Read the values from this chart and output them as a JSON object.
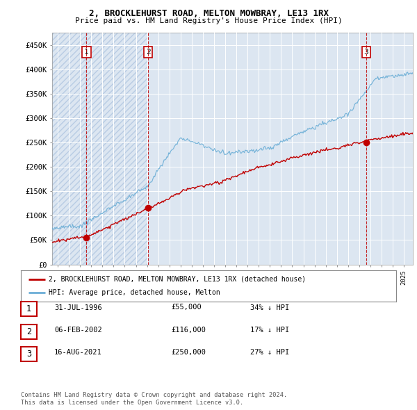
{
  "title1": "2, BROCKLEHURST ROAD, MELTON MOWBRAY, LE13 1RX",
  "title2": "Price paid vs. HM Land Registry's House Price Index (HPI)",
  "ylim": [
    0,
    475000
  ],
  "yticks": [
    0,
    50000,
    100000,
    150000,
    200000,
    250000,
    300000,
    350000,
    400000,
    450000
  ],
  "ytick_labels": [
    "£0",
    "£50K",
    "£100K",
    "£150K",
    "£200K",
    "£250K",
    "£300K",
    "£350K",
    "£400K",
    "£450K"
  ],
  "hpi_color": "#6baed6",
  "price_color": "#c00000",
  "vline_color": "#c00000",
  "background_color": "#ffffff",
  "plot_bg_color": "#dce6f1",
  "hatch_color": "#c8d8ec",
  "grid_color": "#ffffff",
  "sale1_x": 1996.58,
  "sale1_y": 55000,
  "sale2_x": 2002.09,
  "sale2_y": 116000,
  "sale3_x": 2021.62,
  "sale3_y": 250000,
  "legend_line1": "2, BROCKLEHURST ROAD, MELTON MOWBRAY, LE13 1RX (detached house)",
  "legend_line2": "HPI: Average price, detached house, Melton",
  "table_entries": [
    {
      "num": "1",
      "date": "31-JUL-1996",
      "price": "£55,000",
      "hpi": "34% ↓ HPI"
    },
    {
      "num": "2",
      "date": "06-FEB-2002",
      "price": "£116,000",
      "hpi": "17% ↓ HPI"
    },
    {
      "num": "3",
      "date": "16-AUG-2021",
      "price": "£250,000",
      "hpi": "27% ↓ HPI"
    }
  ],
  "footnote1": "Contains HM Land Registry data © Crown copyright and database right 2024.",
  "footnote2": "This data is licensed under the Open Government Licence v3.0.",
  "xlim_start": 1993.5,
  "xlim_end": 2025.8
}
